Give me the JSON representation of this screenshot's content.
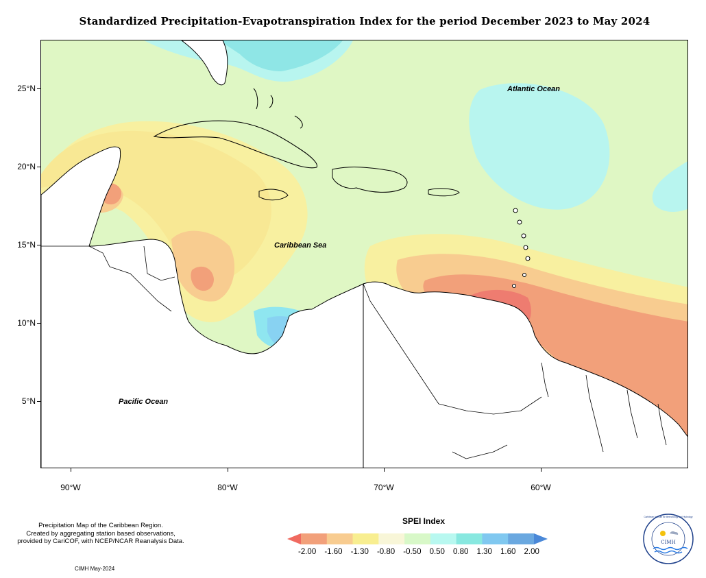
{
  "title": "Standardized Precipitation-Evapotranspiration Index for the period December 2023 to May 2024",
  "map": {
    "labels": {
      "atlantic": "Atlantic Ocean",
      "caribbean": "Caribbean Sea",
      "pacific": "Pacific Ocean"
    },
    "lat_ticks": [
      "25°N",
      "20°N",
      "15°N",
      "10°N",
      "5°N"
    ],
    "lon_ticks": [
      "90°W",
      "80°W",
      "70°W",
      "60°W"
    ]
  },
  "legend": {
    "title": "SPEI Index",
    "labels": [
      "-2.00",
      "-1.60",
      "-1.30",
      "-0.80",
      "-0.50",
      "0.50",
      "0.80",
      "1.30",
      "1.60",
      "2.00"
    ],
    "colors": [
      "#f06a60",
      "#f2a07a",
      "#f8cc90",
      "#f8ee90",
      "#f8f6d8",
      "#d8f8c8",
      "#b8f8f0",
      "#88e8e0",
      "#80c8f0",
      "#6aa8e0",
      "#4a88d8"
    ]
  },
  "footnote": {
    "line1": "Precipitation Map of the Caribbean Region.",
    "line2": "Created by aggregating station based observations,",
    "line3": "provided by CariCOF, with NCEP/NCAR Reanalysis Data."
  },
  "credit": "CIMH May-2024",
  "logo": {
    "name": "CIMH",
    "ring_text": "Caribbean Institute for Meteorology and Hydrology"
  }
}
